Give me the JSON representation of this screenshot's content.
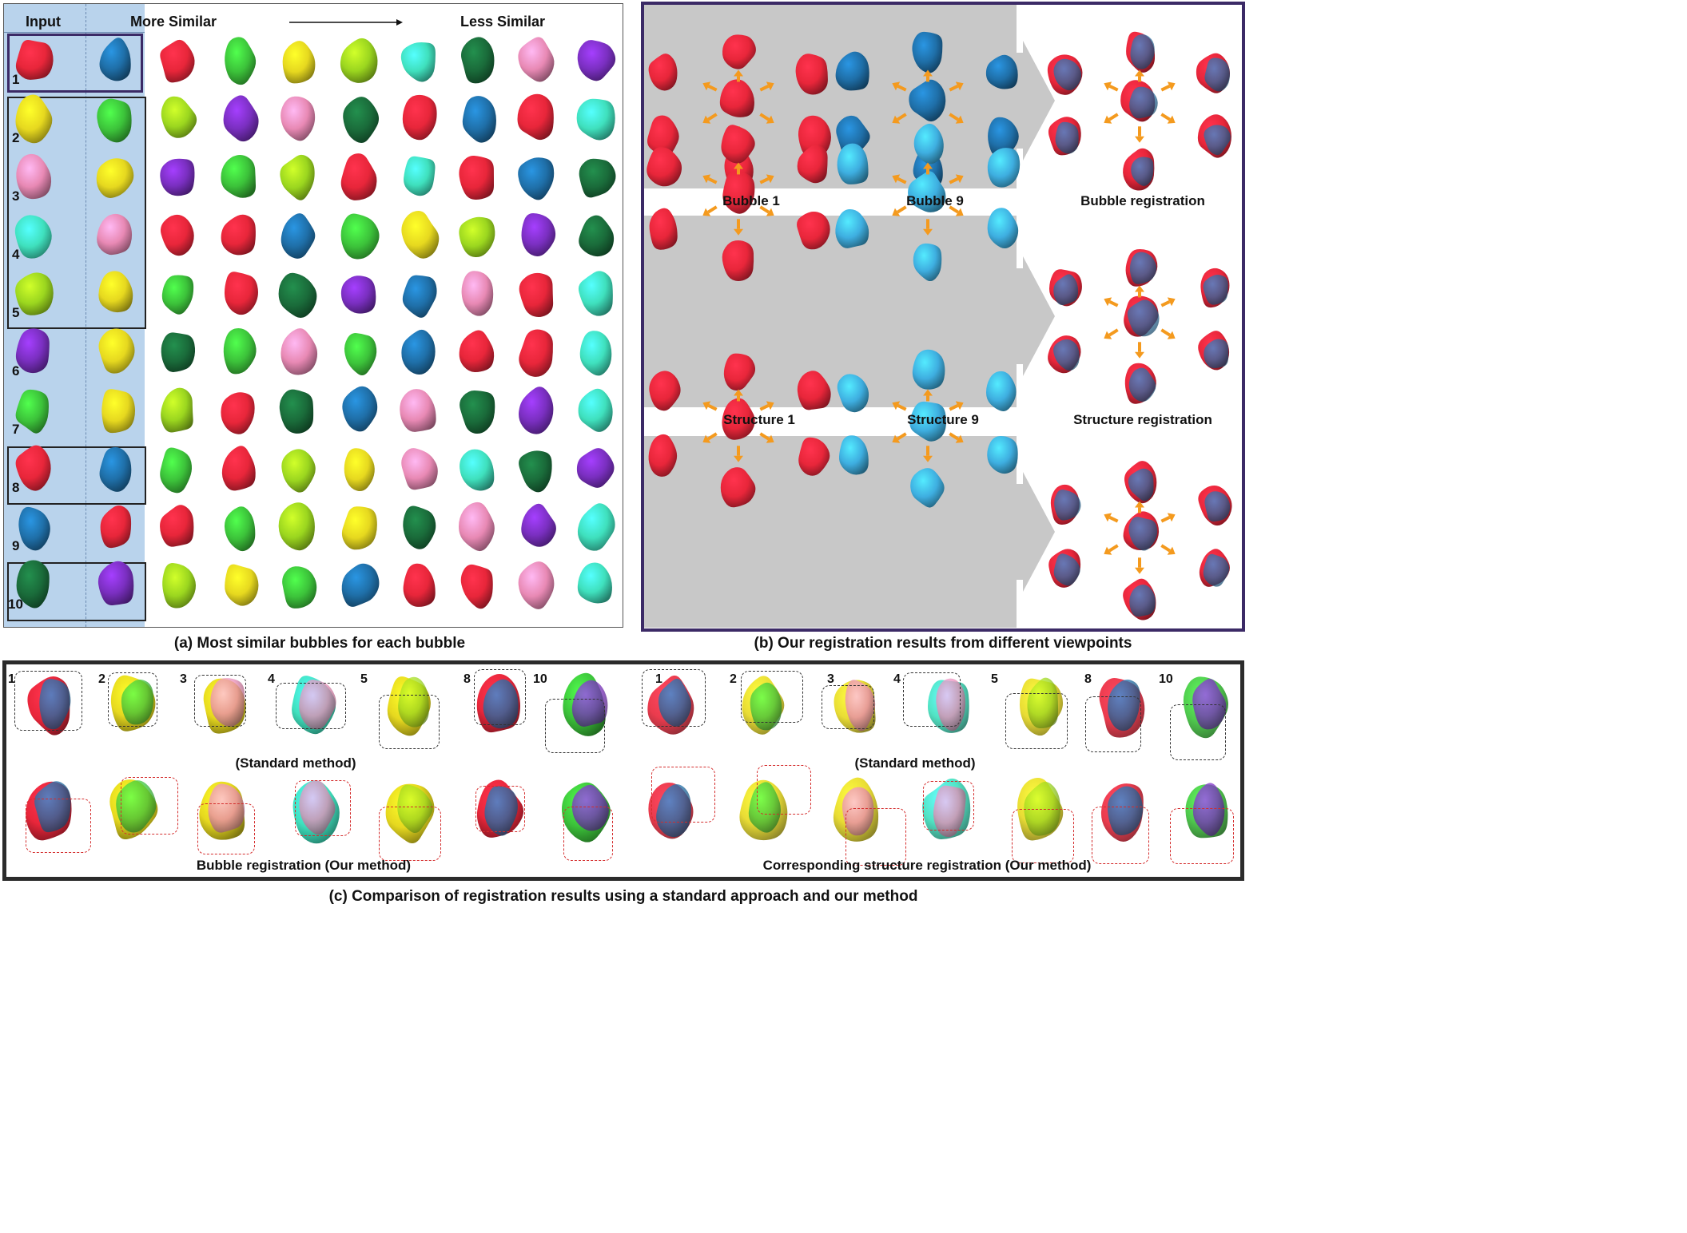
{
  "panel_a": {
    "header_input": "Input",
    "header_more": "More Similar",
    "header_less": "Less Similar",
    "caption": "(a) Most similar bubbles for each bubble",
    "row_labels": [
      "1",
      "2",
      "3",
      "4",
      "5",
      "6",
      "7",
      "8",
      "9",
      "10"
    ],
    "highlight_groups": "rows 1, 2-5, 8, 10 boxed",
    "rows": [
      [
        "red",
        "blue",
        "red",
        "green",
        "yellow",
        "lime",
        "teal",
        "darkgreen",
        "pink",
        "purple"
      ],
      [
        "yellow",
        "green",
        "lime",
        "purple",
        "pink",
        "darkgreen",
        "red",
        "blue",
        "red",
        "teal"
      ],
      [
        "pink",
        "yellow",
        "purple",
        "green",
        "lime",
        "red",
        "teal",
        "red",
        "blue",
        "darkgreen"
      ],
      [
        "teal",
        "pink",
        "red",
        "red",
        "blue",
        "green",
        "yellow",
        "lime",
        "purple",
        "darkgreen"
      ],
      [
        "lime",
        "yellow",
        "green",
        "red",
        "darkgreen",
        "purple",
        "blue",
        "pink",
        "red",
        "teal"
      ],
      [
        "purple",
        "yellow",
        "darkgreen",
        "green",
        "pink",
        "green",
        "blue",
        "red",
        "red",
        "teal"
      ],
      [
        "green",
        "yellow",
        "lime",
        "red",
        "darkgreen",
        "blue",
        "pink",
        "darkgreen",
        "purple",
        "teal"
      ],
      [
        "red",
        "blue",
        "green",
        "red",
        "lime",
        "yellow",
        "pink",
        "teal",
        "darkgreen",
        "purple"
      ],
      [
        "blue",
        "red",
        "red",
        "green",
        "lime",
        "yellow",
        "darkgreen",
        "pink",
        "purple",
        "teal"
      ],
      [
        "darkgreen",
        "purple",
        "lime",
        "yellow",
        "green",
        "blue",
        "red",
        "red",
        "pink",
        "teal"
      ]
    ]
  },
  "panel_b": {
    "caption": "(b) Our registration results from different viewpoints",
    "labels": [
      "Bubble 1",
      "Bubble 9",
      "Bubble registration",
      "Structure 1",
      "Structure 9",
      "Structure registration"
    ]
  },
  "panel_c": {
    "caption": "(c) Comparison of registration results using a standard approach and our method",
    "standard_label_left": "(Standard method)",
    "standard_label_right": "(Standard method)",
    "ours_label_left": "Bubble registration (Our method)",
    "ours_label_right": "Corresponding structure registration (Our method)",
    "ids": [
      "1",
      "2",
      "3",
      "4",
      "5",
      "8",
      "10"
    ]
  },
  "colors": {
    "red": "#e8263a",
    "blue": "#1f6fa8",
    "green": "#3cc23a",
    "yellow": "#e6d81f",
    "lime": "#9bd61f",
    "teal": "#3fe0bd",
    "darkgreen": "#1a6b3a",
    "pink": "#e889b4",
    "purple": "#7a2fc0",
    "lightblue": "#3eaee0",
    "orange": "#f49a1e"
  }
}
